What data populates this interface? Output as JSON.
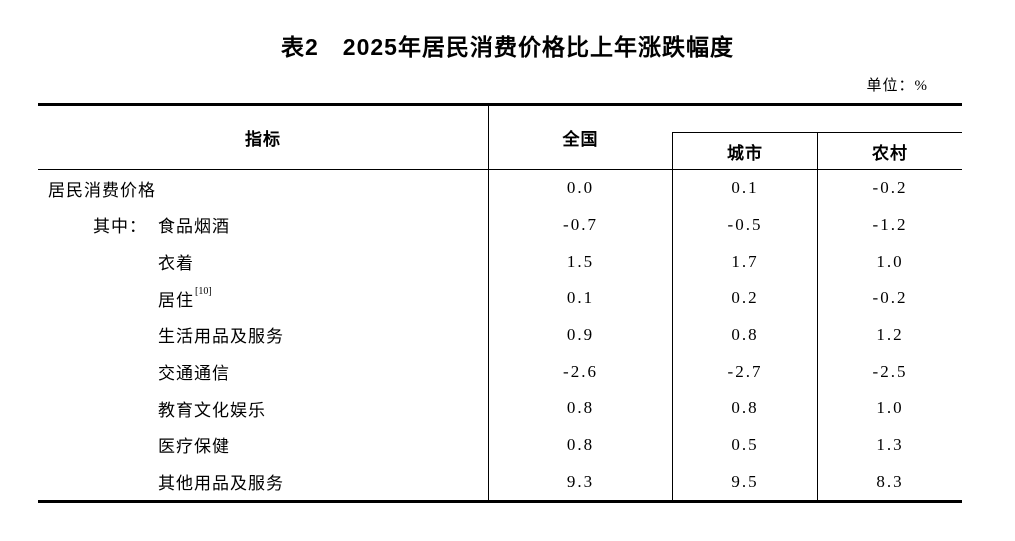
{
  "title": "表2　2025年居民消费价格比上年涨跌幅度",
  "unit_label": "单位：%",
  "table": {
    "headers": {
      "indicator": "指标",
      "national": "全国",
      "urban": "城市",
      "rural": "农村"
    },
    "rows": [
      {
        "prefix": "",
        "label": "居民消费价格",
        "sup": "",
        "indent": 0,
        "national": "0.0",
        "urban": "0.1",
        "rural": "-0.2"
      },
      {
        "prefix": "其中：",
        "label": "食品烟酒",
        "sup": "",
        "indent": 1,
        "national": "-0.7",
        "urban": "-0.5",
        "rural": "-1.2"
      },
      {
        "prefix": "",
        "label": "衣着",
        "sup": "",
        "indent": 2,
        "national": "1.5",
        "urban": "1.7",
        "rural": "1.0"
      },
      {
        "prefix": "",
        "label": "居住",
        "sup": "[10]",
        "indent": 2,
        "national": "0.1",
        "urban": "0.2",
        "rural": "-0.2"
      },
      {
        "prefix": "",
        "label": "生活用品及服务",
        "sup": "",
        "indent": 2,
        "national": "0.9",
        "urban": "0.8",
        "rural": "1.2"
      },
      {
        "prefix": "",
        "label": "交通通信",
        "sup": "",
        "indent": 2,
        "national": "-2.6",
        "urban": "-2.7",
        "rural": "-2.5"
      },
      {
        "prefix": "",
        "label": "教育文化娱乐",
        "sup": "",
        "indent": 2,
        "national": "0.8",
        "urban": "0.8",
        "rural": "1.0"
      },
      {
        "prefix": "",
        "label": "医疗保健",
        "sup": "",
        "indent": 2,
        "national": "0.8",
        "urban": "0.5",
        "rural": "1.3"
      },
      {
        "prefix": "",
        "label": "其他用品及服务",
        "sup": "",
        "indent": 2,
        "national": "9.3",
        "urban": "9.5",
        "rural": "8.3"
      }
    ]
  }
}
